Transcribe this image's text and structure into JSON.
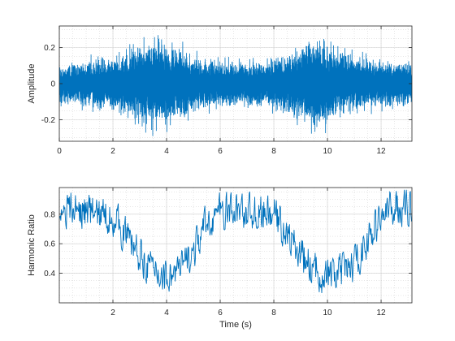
{
  "chart_data": [
    {
      "type": "line",
      "title": "",
      "xlabel": "",
      "ylabel": "Amplitude",
      "xlim": [
        0,
        13.15
      ],
      "ylim": [
        -0.32,
        0.32
      ],
      "xticks": [
        0,
        2,
        4,
        6,
        8,
        10,
        12
      ],
      "xtick_labels": [
        "0",
        "2",
        "4",
        "6",
        "8",
        "10",
        "12"
      ],
      "yticks": [
        -0.2,
        0,
        0.2
      ],
      "ytick_labels": [
        "-0.2",
        "0",
        "0.2"
      ],
      "grid": true,
      "minor_grid": true,
      "color": "#0072BD",
      "envelope": {
        "t": [
          0,
          1,
          2,
          3,
          3.5,
          4,
          4.5,
          5,
          6,
          7,
          8,
          9,
          9.5,
          10,
          10.5,
          11,
          12,
          13.15
        ],
        "amp": [
          0.13,
          0.16,
          0.19,
          0.25,
          0.32,
          0.28,
          0.25,
          0.19,
          0.16,
          0.15,
          0.17,
          0.25,
          0.32,
          0.28,
          0.24,
          0.19,
          0.16,
          0.15
        ]
      }
    },
    {
      "type": "line",
      "title": "",
      "xlabel": "Time (s)",
      "ylabel": "Harmonic Ratio",
      "xlim": [
        0,
        13.15
      ],
      "ylim": [
        0.2,
        0.98
      ],
      "xticks": [
        2,
        4,
        6,
        8,
        10,
        12
      ],
      "xtick_labels": [
        "2",
        "4",
        "6",
        "8",
        "10",
        "12"
      ],
      "yticks": [
        0.4,
        0.6,
        0.8
      ],
      "ytick_labels": [
        "0.4",
        "0.6",
        "0.8"
      ],
      "grid": true,
      "minor_grid": true,
      "color": "#0072BD",
      "trend": {
        "t": [
          0,
          1,
          1.5,
          2,
          2.5,
          3,
          3.5,
          4,
          4.5,
          5,
          5.5,
          6,
          7,
          7.5,
          8,
          8.5,
          9,
          9.5,
          10,
          10.5,
          11,
          11.5,
          12,
          12.5,
          13.15
        ],
        "hr": [
          0.84,
          0.82,
          0.8,
          0.78,
          0.66,
          0.52,
          0.42,
          0.38,
          0.42,
          0.54,
          0.74,
          0.82,
          0.82,
          0.8,
          0.8,
          0.66,
          0.52,
          0.42,
          0.38,
          0.4,
          0.46,
          0.62,
          0.78,
          0.85,
          0.84
        ]
      }
    }
  ]
}
